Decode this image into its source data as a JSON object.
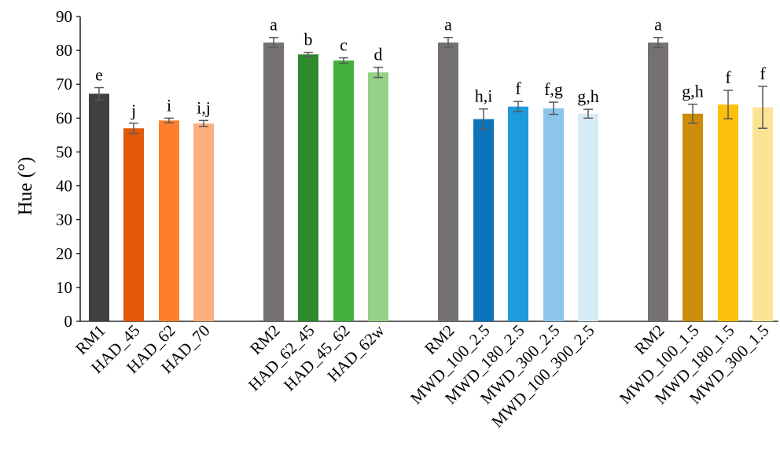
{
  "chart_data": {
    "type": "bar",
    "ylabel": "Hue (°)",
    "ylim": [
      0,
      90
    ],
    "yticks": [
      0,
      10,
      20,
      30,
      40,
      50,
      60,
      70,
      80,
      90
    ],
    "grid": false,
    "bars": [
      {
        "category": "RM1",
        "value": 67.2,
        "error": 1.8,
        "label": "e",
        "color": "#404040"
      },
      {
        "category": "HAD_45",
        "value": 57.0,
        "error": 1.5,
        "label": "j",
        "color": "#e15908"
      },
      {
        "category": "HAD_62",
        "value": 59.3,
        "error": 0.7,
        "label": "i",
        "color": "#fd7f2b"
      },
      {
        "category": "HAD_70",
        "value": 58.4,
        "error": 0.9,
        "label": "i,j",
        "color": "#fdae7f"
      },
      {
        "category": "RM2",
        "value": 82.3,
        "error": 1.5,
        "label": "a",
        "color": "#767171"
      },
      {
        "category": "HAD_62_45",
        "value": 78.8,
        "error": 0.6,
        "label": "b",
        "color": "#2d8a2d"
      },
      {
        "category": "HAD_45_62",
        "value": 77.0,
        "error": 0.8,
        "label": "c",
        "color": "#43b03c"
      },
      {
        "category": "HAD_62w",
        "value": 73.5,
        "error": 1.5,
        "label": "d",
        "color": "#95d186"
      },
      {
        "category": "RM2",
        "value": 82.3,
        "error": 1.5,
        "label": "a",
        "color": "#767171"
      },
      {
        "category": "MWD_100_2.5",
        "value": 59.7,
        "error": 3.0,
        "label": "h,i",
        "color": "#0b73ba"
      },
      {
        "category": "MWD_180_2.5",
        "value": 63.4,
        "error": 1.5,
        "label": "f",
        "color": "#1e9bdc"
      },
      {
        "category": "MWD_300_2.5",
        "value": 62.9,
        "error": 1.8,
        "label": "f,g",
        "color": "#8dc5ea"
      },
      {
        "category": "MWD_100_300_2.5",
        "value": 61.3,
        "error": 1.3,
        "label": "g,h",
        "color": "#d7ebf6"
      },
      {
        "category": "RM2",
        "value": 82.3,
        "error": 1.5,
        "label": "a",
        "color": "#767171"
      },
      {
        "category": "MWD_100_1.5",
        "value": 61.3,
        "error": 2.8,
        "label": "g,h",
        "color": "#cd8c0a"
      },
      {
        "category": "MWD_180_1.5",
        "value": 64.0,
        "error": 4.2,
        "label": "f",
        "color": "#fdc00b"
      },
      {
        "category": "MWD_300_1.5",
        "value": 63.2,
        "error": 6.2,
        "label": "f",
        "color": "#fde494"
      }
    ]
  }
}
